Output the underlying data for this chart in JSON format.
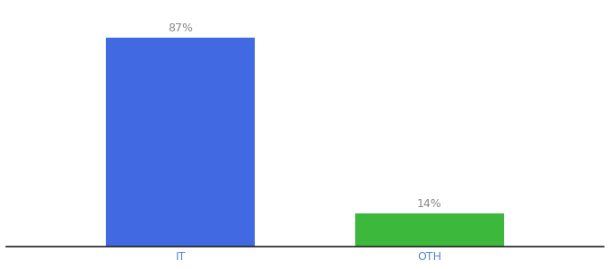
{
  "categories": [
    "IT",
    "OTH"
  ],
  "values": [
    87,
    14
  ],
  "bar_colors": [
    "#4169E1",
    "#3CB83C"
  ],
  "labels": [
    "87%",
    "14%"
  ],
  "ylim": [
    0,
    100
  ],
  "background_color": "#ffffff",
  "bar_width": 0.6,
  "label_fontsize": 9,
  "tick_fontsize": 9,
  "label_color": "#888888",
  "tick_color": "#5588cc",
  "spine_color": "#222222"
}
